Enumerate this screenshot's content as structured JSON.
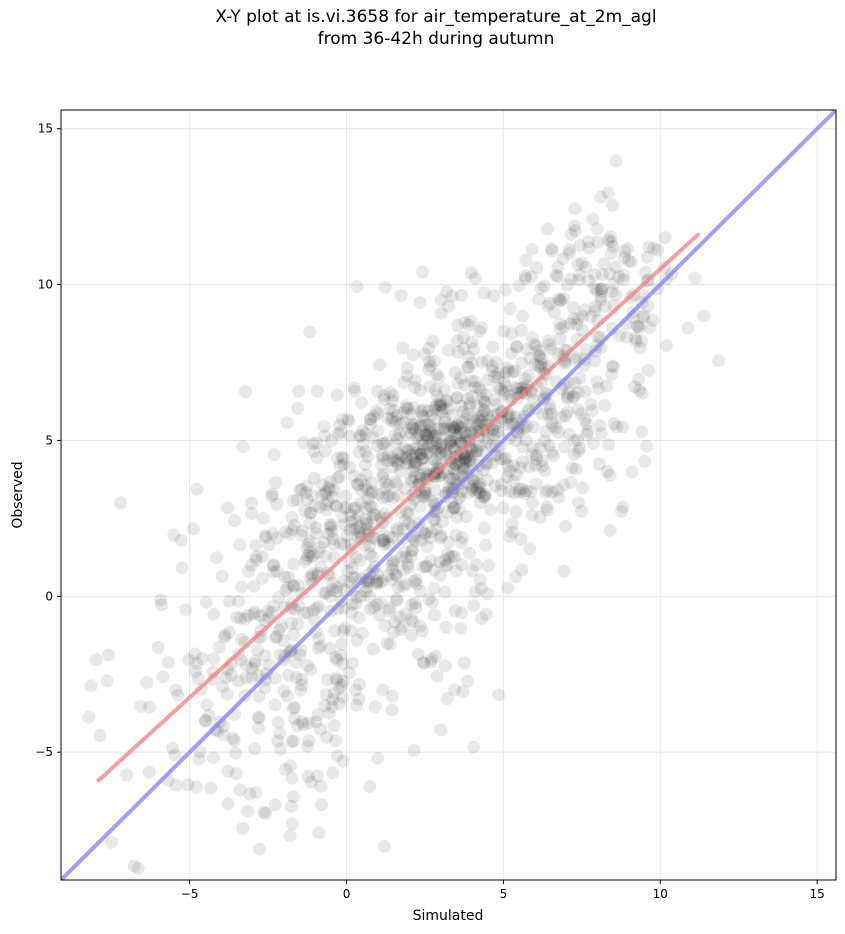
{
  "chart_data": {
    "type": "scatter",
    "title_line1": "X-Y plot at is.vi.3658 for air_temperature_at_2m_agl",
    "title_line2": "from 36-42h during autumn",
    "xlabel": "Simulated",
    "ylabel": "Observed",
    "xlim": [
      -9.1,
      15.6
    ],
    "ylim": [
      -9.1,
      15.6
    ],
    "xticks": [
      -5,
      0,
      5,
      10,
      15
    ],
    "yticks": [
      -5,
      0,
      5,
      10,
      15
    ],
    "xtick_labels": [
      "−5",
      "0",
      "5",
      "10",
      "15"
    ],
    "ytick_labels": [
      "−5",
      "0",
      "5",
      "10",
      "15"
    ],
    "grid": true,
    "points_color": "#000000",
    "regression_line": {
      "x": [
        -7.9,
        11.2
      ],
      "y": [
        -5.9,
        11.6
      ],
      "color": "#f08080"
    },
    "identity_line": {
      "x": [
        -9.1,
        15.6
      ],
      "y": [
        -9.1,
        15.6
      ],
      "color": "#8080f0"
    },
    "clusters": [
      {
        "cx": 3.0,
        "cy": 4.8,
        "sx": 1.2,
        "sy": 1.0,
        "n": 300
      },
      {
        "cx": 0.5,
        "cy": 1.5,
        "sx": 2.0,
        "sy": 2.0,
        "n": 450
      },
      {
        "cx": 5.5,
        "cy": 6.0,
        "sx": 1.8,
        "sy": 2.0,
        "n": 380
      },
      {
        "cx": 8.2,
        "cy": 10.0,
        "sx": 1.2,
        "sy": 1.5,
        "n": 120
      },
      {
        "cx": -2.5,
        "cy": -3.0,
        "sx": 2.2,
        "sy": 2.4,
        "n": 230
      }
    ]
  }
}
